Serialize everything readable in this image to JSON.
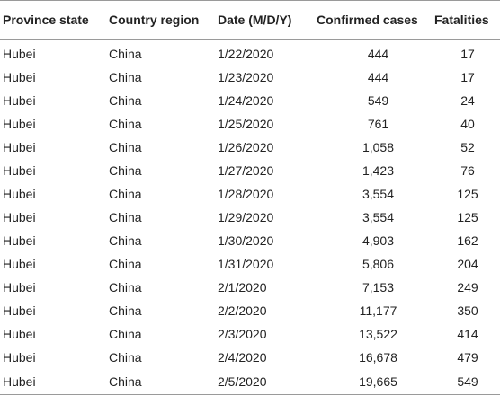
{
  "table": {
    "headers": [
      "Province state",
      "Country region",
      "Date (M/D/Y)",
      "Confirmed cases",
      "Fatalities"
    ],
    "rows": [
      [
        "Hubei",
        "China",
        "1/22/2020",
        "444",
        "17"
      ],
      [
        "Hubei",
        "China",
        "1/23/2020",
        "444",
        "17"
      ],
      [
        "Hubei",
        "China",
        "1/24/2020",
        "549",
        "24"
      ],
      [
        "Hubei",
        "China",
        "1/25/2020",
        "761",
        "40"
      ],
      [
        "Hubei",
        "China",
        "1/26/2020",
        "1,058",
        "52"
      ],
      [
        "Hubei",
        "China",
        "1/27/2020",
        "1,423",
        "76"
      ],
      [
        "Hubei",
        "China",
        "1/28/2020",
        "3,554",
        "125"
      ],
      [
        "Hubei",
        "China",
        "1/29/2020",
        "3,554",
        "125"
      ],
      [
        "Hubei",
        "China",
        "1/30/2020",
        "4,903",
        "162"
      ],
      [
        "Hubei",
        "China",
        "1/31/2020",
        "5,806",
        "204"
      ],
      [
        "Hubei",
        "China",
        "2/1/2020",
        "7,153",
        "249"
      ],
      [
        "Hubei",
        "China",
        "2/2/2020",
        "11,177",
        "350"
      ],
      [
        "Hubei",
        "China",
        "2/3/2020",
        "13,522",
        "414"
      ],
      [
        "Hubei",
        "China",
        "2/4/2020",
        "16,678",
        "479"
      ],
      [
        "Hubei",
        "China",
        "2/5/2020",
        "19,665",
        "549"
      ]
    ]
  }
}
